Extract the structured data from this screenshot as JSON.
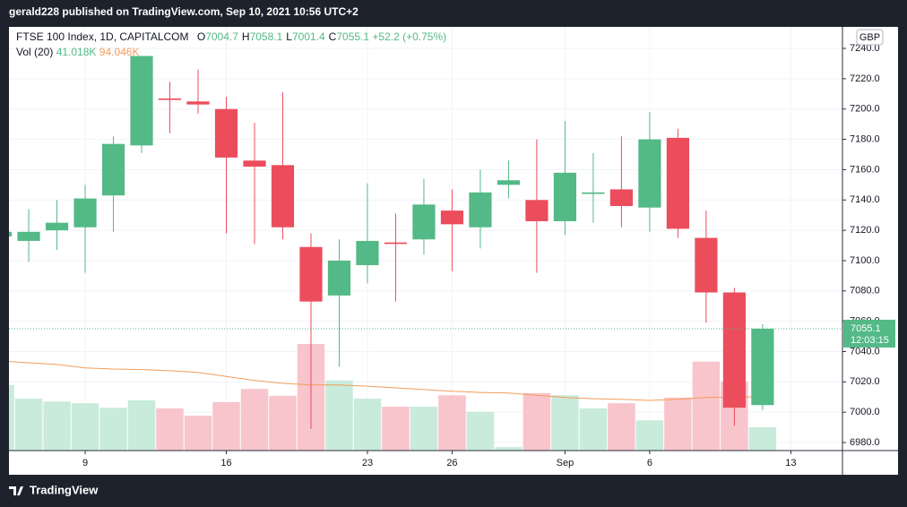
{
  "header": {
    "published": "gerald228 published on TradingView.com, Sep 10, 2021 10:56 UTC+2"
  },
  "footer": {
    "brand": "TradingView"
  },
  "chart_data": {
    "type": "candlestick",
    "symbol": "FTSE 100 Index, 1D, CAPITALCOM",
    "ohlc_legend": [
      {
        "key": "O",
        "value": "7004.7"
      },
      {
        "key": "H",
        "value": "7058.1"
      },
      {
        "key": "L",
        "value": "7001.4"
      },
      {
        "key": "C",
        "value": "7055.1"
      }
    ],
    "change": "+52.2 (+0.75%)",
    "volume_legend": {
      "name": "Vol (20)",
      "volume": "41.018K",
      "ma": "94.046K"
    },
    "currency": "GBP",
    "x": [
      -1,
      0,
      1,
      2,
      3,
      4,
      5,
      6,
      7,
      8,
      9,
      10,
      11,
      12,
      13,
      14,
      15,
      16,
      17,
      18,
      19,
      20,
      21,
      22,
      23,
      24,
      25,
      26
    ],
    "open": [
      7116,
      7113,
      7120,
      7122,
      7143,
      7176,
      7207,
      7205,
      7200,
      7166,
      7163,
      7109,
      7077,
      7097,
      7112,
      7114,
      7133,
      7122,
      7150,
      7140,
      7126,
      7144,
      7147,
      7135,
      7181,
      7115,
      7079,
      7004.7
    ],
    "high": [
      7120,
      7134,
      7140,
      7150,
      7182,
      7235,
      7218,
      7226,
      7208,
      7191,
      7211,
      7118,
      7114,
      7151,
      7131,
      7154,
      7147,
      7160,
      7166,
      7180,
      7192,
      7171,
      7182,
      7198,
      7187,
      7133,
      7082,
      7058.1
    ],
    "low": [
      7114,
      7099,
      7107,
      7092,
      7119,
      7171,
      7184,
      7197,
      7118,
      7111,
      7114,
      6989,
      7030,
      7085,
      7073,
      7104,
      7093,
      7108,
      7141,
      7092,
      7117,
      7125,
      7122,
      7119,
      7115,
      7059,
      6991,
      7001.4
    ],
    "close": [
      7119,
      7119,
      7125,
      7141,
      7177,
      7235,
      7206,
      7203,
      7168,
      7162,
      7122,
      7073,
      7100,
      7113,
      7111,
      7137,
      7124,
      7145,
      7153,
      7126,
      7158,
      7145,
      7136,
      7180,
      7121,
      7079,
      7003,
      7055.1
    ],
    "volume": [
      115,
      91,
      86,
      83,
      75,
      88,
      74,
      61,
      85,
      108,
      96,
      187,
      123,
      91,
      77,
      77,
      97,
      68,
      6,
      101,
      97,
      74,
      83,
      53,
      93,
      156,
      121,
      41.018
    ],
    "volume_ma": [
      157,
      154,
      151,
      145,
      143,
      142,
      140,
      137,
      130,
      123,
      118,
      115,
      115,
      113,
      110,
      107,
      104,
      102,
      101,
      97,
      93,
      91,
      90,
      88,
      90,
      93,
      94,
      94.046
    ],
    "up_color": "#53b987",
    "down_color": "#eb4d5c",
    "up_volume_color": "#c9ebdb",
    "down_volume_color": "#f8c5cd",
    "ma_color": "#f49d5a",
    "xlim": [
      -0.7,
      28.83
    ],
    "xticks": [
      {
        "value": 2,
        "label": "9"
      },
      {
        "value": 7,
        "label": "16"
      },
      {
        "value": 12,
        "label": "23"
      },
      {
        "value": 15,
        "label": "26"
      },
      {
        "value": 19,
        "label": "Sep"
      },
      {
        "value": 22,
        "label": "6"
      },
      {
        "value": 27,
        "label": "13"
      }
    ],
    "ylim": [
      6974.7,
      7254.2
    ],
    "yticks": [
      {
        "value": 6980,
        "label": "6980.0"
      },
      {
        "value": 7000,
        "label": "7000.0"
      },
      {
        "value": 7020,
        "label": "7020.0"
      },
      {
        "value": 7040,
        "label": "7040.0"
      },
      {
        "value": 7060,
        "label": "7060.0"
      },
      {
        "value": 7080,
        "label": "7080.0"
      },
      {
        "value": 7100,
        "label": "7100.0"
      },
      {
        "value": 7120,
        "label": "7120.0"
      },
      {
        "value": 7140,
        "label": "7140.0"
      },
      {
        "value": 7160,
        "label": "7160.0"
      },
      {
        "value": 7180,
        "label": "7180.0"
      },
      {
        "value": 7200,
        "label": "7200.0"
      },
      {
        "value": 7220,
        "label": "7220.0"
      },
      {
        "value": 7240,
        "label": "7240.0"
      }
    ],
    "volume_lim": [
      0,
      743
    ],
    "grid": true,
    "last_price": {
      "value": 7055.1,
      "label": "7055.1",
      "countdown": "12:03:15"
    }
  }
}
